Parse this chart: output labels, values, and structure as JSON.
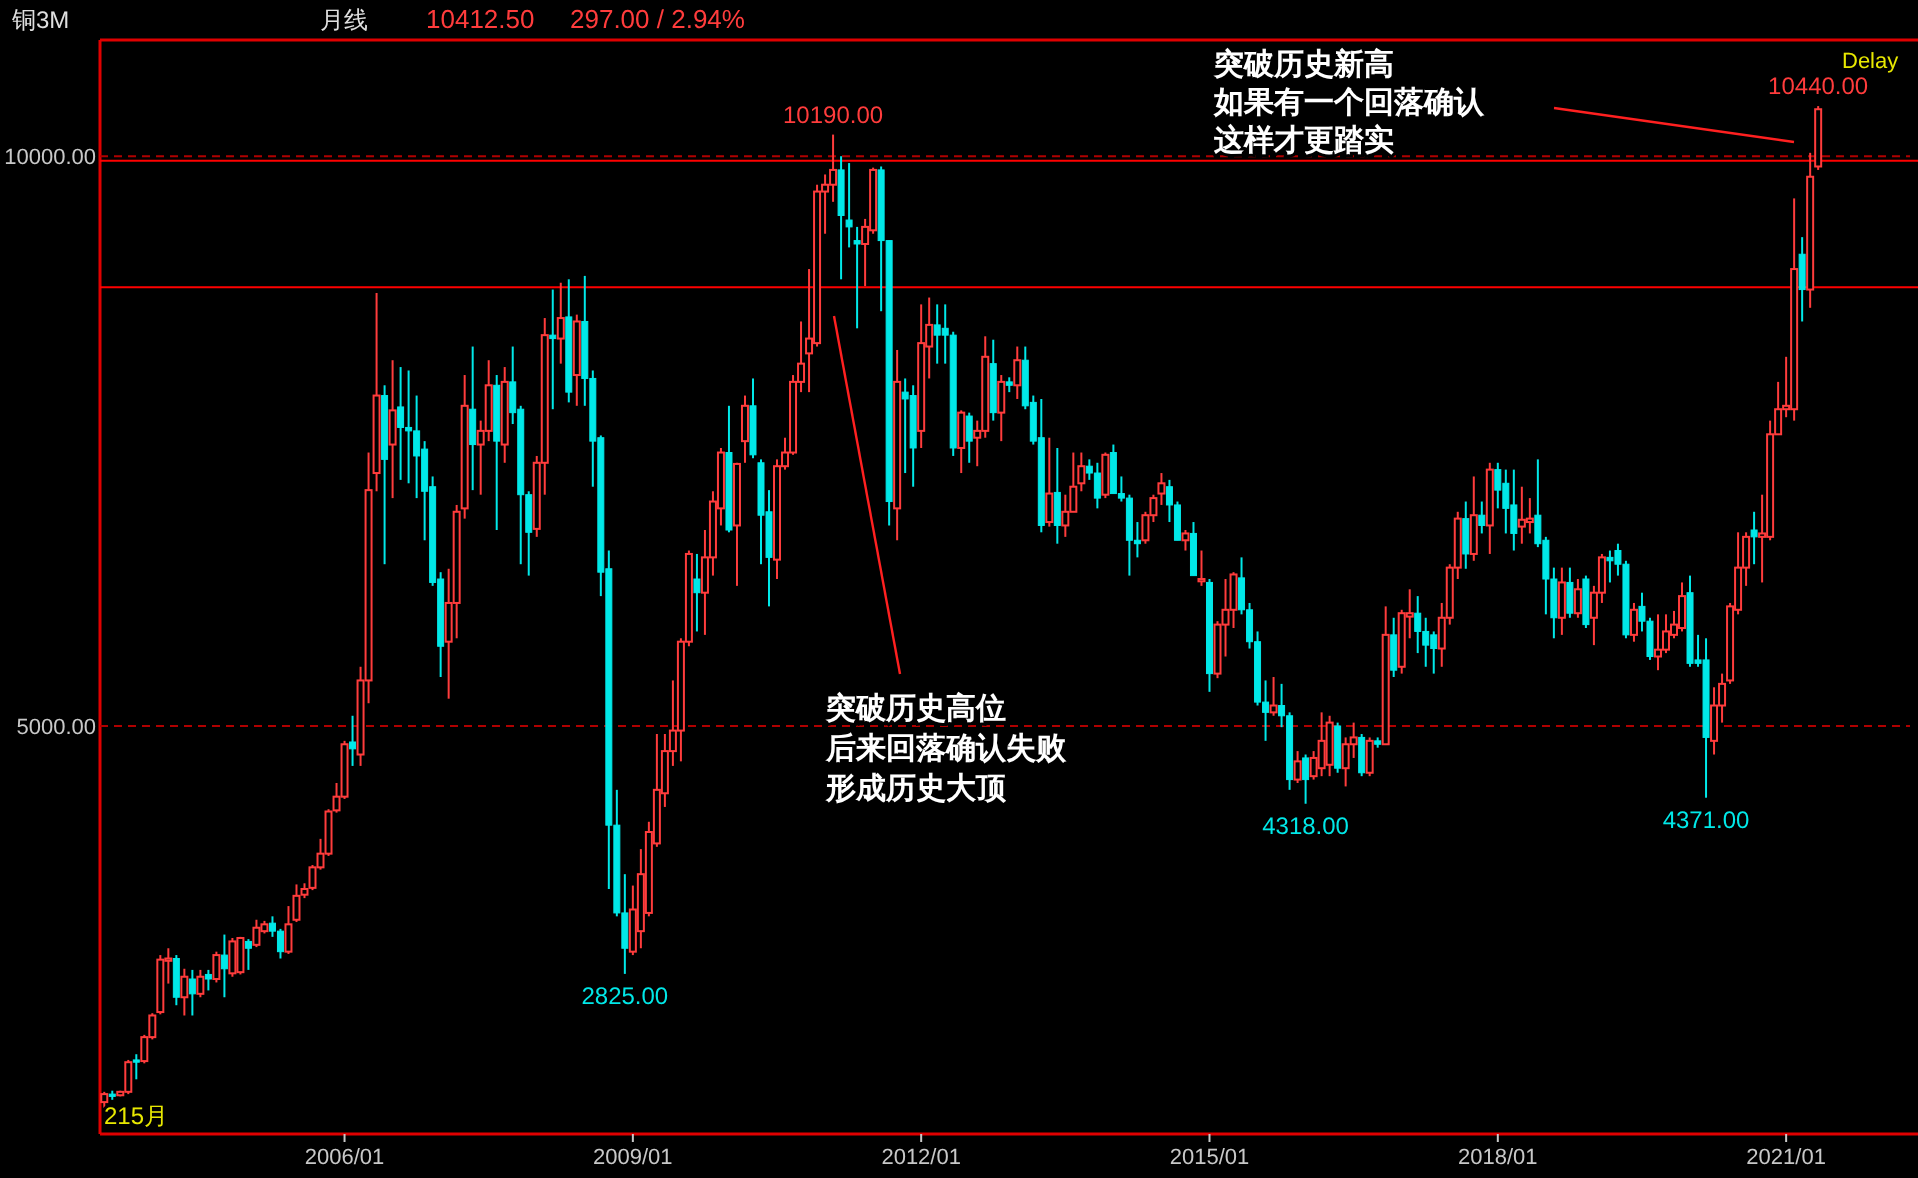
{
  "chart_data": {
    "type": "candlestick",
    "title": "铜3M",
    "subtitle": "月线",
    "annotations": [
      "10412.50",
      "297.00 / 2.94%",
      "Delay",
      "215月",
      "突破历史高位",
      "后来回落确认失败",
      "形成历史大顶",
      "突破历史新高",
      "如果有一个回落确认",
      "这样才更踏实",
      {
        "text": "10190.00",
        "x": "2011-02",
        "y": 10190
      },
      {
        "text": "2825.00",
        "x": "2008-12",
        "y": 2825
      },
      {
        "text": "4318.00",
        "x": "2016-01",
        "y": 4318
      },
      {
        "text": "4371.00",
        "x": "2020-03",
        "y": 4371
      },
      {
        "text": "10440.00",
        "x": "2021-05",
        "y": 10440
      }
    ],
    "x": [
      "2003-07",
      "2003-08",
      "2003-09",
      "2003-10",
      "2003-11",
      "2003-12",
      "2004-01",
      "2004-02",
      "2004-03",
      "2004-04",
      "2004-05",
      "2004-06",
      "2004-07",
      "2004-08",
      "2004-09",
      "2004-10",
      "2004-11",
      "2004-12",
      "2005-01",
      "2005-02",
      "2005-03",
      "2005-04",
      "2005-05",
      "2005-06",
      "2005-07",
      "2005-08",
      "2005-09",
      "2005-10",
      "2005-11",
      "2005-12",
      "2006-01",
      "2006-02",
      "2006-03",
      "2006-04",
      "2006-05",
      "2006-06",
      "2006-07",
      "2006-08",
      "2006-09",
      "2006-10",
      "2006-11",
      "2006-12",
      "2007-01",
      "2007-02",
      "2007-03",
      "2007-04",
      "2007-05",
      "2007-06",
      "2007-07",
      "2007-08",
      "2007-09",
      "2007-10",
      "2007-11",
      "2007-12",
      "2008-01",
      "2008-02",
      "2008-03",
      "2008-04",
      "2008-05",
      "2008-06",
      "2008-07",
      "2008-08",
      "2008-09",
      "2008-10",
      "2008-11",
      "2008-12",
      "2009-01",
      "2009-02",
      "2009-03",
      "2009-04",
      "2009-05",
      "2009-06",
      "2009-07",
      "2009-08",
      "2009-09",
      "2009-10",
      "2009-11",
      "2009-12",
      "2010-01",
      "2010-02",
      "2010-03",
      "2010-04",
      "2010-05",
      "2010-06",
      "2010-07",
      "2010-08",
      "2010-09",
      "2010-10",
      "2010-11",
      "2010-12",
      "2011-01",
      "2011-02",
      "2011-03",
      "2011-04",
      "2011-05",
      "2011-06",
      "2011-07",
      "2011-08",
      "2011-09",
      "2011-10",
      "2011-11",
      "2011-12",
      "2012-01",
      "2012-02",
      "2012-03",
      "2012-04",
      "2012-05",
      "2012-06",
      "2012-07",
      "2012-08",
      "2012-09",
      "2012-10",
      "2012-11",
      "2012-12",
      "2013-01",
      "2013-02",
      "2013-03",
      "2013-04",
      "2013-05",
      "2013-06",
      "2013-07",
      "2013-08",
      "2013-09",
      "2013-10",
      "2013-11",
      "2013-12",
      "2014-01",
      "2014-02",
      "2014-03",
      "2014-04",
      "2014-05",
      "2014-06",
      "2014-07",
      "2014-08",
      "2014-09",
      "2014-10",
      "2014-11",
      "2014-12",
      "2015-01",
      "2015-02",
      "2015-03",
      "2015-04",
      "2015-05",
      "2015-06",
      "2015-07",
      "2015-08",
      "2015-09",
      "2015-10",
      "2015-11",
      "2015-12",
      "2016-01",
      "2016-02",
      "2016-03",
      "2016-04",
      "2016-05",
      "2016-06",
      "2016-07",
      "2016-08",
      "2016-09",
      "2016-10",
      "2016-11",
      "2016-12",
      "2017-01",
      "2017-02",
      "2017-03",
      "2017-04",
      "2017-05",
      "2017-06",
      "2017-07",
      "2017-08",
      "2017-09",
      "2017-10",
      "2017-11",
      "2017-12",
      "2018-01",
      "2018-02",
      "2018-03",
      "2018-04",
      "2018-05",
      "2018-06",
      "2018-07",
      "2018-08",
      "2018-09",
      "2018-10",
      "2018-11",
      "2018-12",
      "2019-01",
      "2019-02",
      "2019-03",
      "2019-04",
      "2019-05",
      "2019-06",
      "2019-07",
      "2019-08",
      "2019-09",
      "2019-10",
      "2019-11",
      "2019-12",
      "2020-01",
      "2020-02",
      "2020-03",
      "2020-04",
      "2020-05",
      "2020-06",
      "2020-07",
      "2020-08",
      "2020-09",
      "2020-10",
      "2020-11",
      "2020-12",
      "2021-01",
      "2021-02",
      "2021-03",
      "2021-04",
      "2021-05"
    ],
    "ohlc": [
      [
        1700,
        1790,
        1650,
        1770
      ],
      [
        1770,
        1800,
        1720,
        1750
      ],
      [
        1760,
        1800,
        1750,
        1790
      ],
      [
        1790,
        2070,
        1770,
        2050
      ],
      [
        2070,
        2120,
        1900,
        2050
      ],
      [
        2060,
        2290,
        2040,
        2270
      ],
      [
        2270,
        2480,
        2250,
        2460
      ],
      [
        2490,
        2990,
        2470,
        2950
      ],
      [
        2940,
        3050,
        2740,
        2960
      ],
      [
        2960,
        2990,
        2550,
        2620
      ],
      [
        2620,
        2870,
        2460,
        2800
      ],
      [
        2780,
        2860,
        2460,
        2650
      ],
      [
        2650,
        2860,
        2620,
        2800
      ],
      [
        2820,
        2860,
        2680,
        2780
      ],
      [
        2780,
        3020,
        2750,
        2990
      ],
      [
        2990,
        3170,
        2620,
        2870
      ],
      [
        2830,
        3140,
        2800,
        3110
      ],
      [
        2840,
        3150,
        2820,
        3140
      ],
      [
        3110,
        3130,
        2860,
        3050
      ],
      [
        3080,
        3300,
        3060,
        3230
      ],
      [
        3200,
        3290,
        3180,
        3260
      ],
      [
        3270,
        3330,
        3150,
        3200
      ],
      [
        3200,
        3220,
        2960,
        3020
      ],
      [
        3020,
        3420,
        3000,
        3260
      ],
      [
        3300,
        3610,
        3280,
        3510
      ],
      [
        3520,
        3620,
        3490,
        3570
      ],
      [
        3580,
        3780,
        3560,
        3760
      ],
      [
        3760,
        4010,
        3740,
        3880
      ],
      [
        3880,
        4270,
        3860,
        4250
      ],
      [
        4260,
        4500,
        4240,
        4380
      ],
      [
        4380,
        4870,
        4360,
        4840
      ],
      [
        4860,
        5090,
        4650,
        4800
      ],
      [
        4750,
        5520,
        4650,
        5400
      ],
      [
        5400,
        7400,
        5200,
        7070
      ],
      [
        7220,
        8800,
        7060,
        7900
      ],
      [
        7900,
        7990,
        6420,
        7340
      ],
      [
        7470,
        8210,
        7000,
        7770
      ],
      [
        7800,
        8150,
        7160,
        7620
      ],
      [
        7620,
        8120,
        7130,
        7590
      ],
      [
        7590,
        7900,
        7000,
        7370
      ],
      [
        7430,
        7500,
        6630,
        7060
      ],
      [
        7100,
        7190,
        6230,
        6260
      ],
      [
        6290,
        6350,
        5430,
        5700
      ],
      [
        5740,
        6380,
        5240,
        6080
      ],
      [
        6080,
        6940,
        5770,
        6880
      ],
      [
        6910,
        8080,
        6820,
        7810
      ],
      [
        7780,
        8330,
        7070,
        7470
      ],
      [
        7470,
        7680,
        7030,
        7590
      ],
      [
        7590,
        8210,
        7500,
        7990
      ],
      [
        7990,
        8080,
        6720,
        7500
      ],
      [
        7470,
        8150,
        7310,
        8020
      ],
      [
        8020,
        8330,
        7650,
        7750
      ],
      [
        7780,
        7810,
        6420,
        7030
      ],
      [
        7030,
        7060,
        6320,
        6700
      ],
      [
        6730,
        7370,
        6660,
        7310
      ],
      [
        7310,
        8580,
        7030,
        8430
      ],
      [
        8430,
        8830,
        7780,
        8400
      ],
      [
        8400,
        8890,
        8180,
        8580
      ],
      [
        8590,
        8920,
        7840,
        7930
      ],
      [
        8080,
        8610,
        7810,
        8550
      ],
      [
        8550,
        8950,
        7810,
        8050
      ],
      [
        8050,
        8120,
        7100,
        7500
      ],
      [
        7530,
        7550,
        6140,
        6350
      ],
      [
        6380,
        6540,
        3570,
        4130
      ],
      [
        4130,
        4440,
        3330,
        3360
      ],
      [
        3360,
        3700,
        2825,
        3050
      ],
      [
        3020,
        3600,
        2990,
        3390
      ],
      [
        3200,
        3920,
        3050,
        3700
      ],
      [
        3360,
        4160,
        3330,
        4070
      ],
      [
        3970,
        4930,
        3940,
        4440
      ],
      [
        4410,
        4930,
        4290,
        4780
      ],
      [
        4780,
        5400,
        4650,
        4960
      ],
      [
        4960,
        5770,
        4690,
        5740
      ],
      [
        5740,
        6540,
        5700,
        6510
      ],
      [
        6290,
        6510,
        5830,
        6170
      ],
      [
        6170,
        6720,
        5800,
        6480
      ],
      [
        6480,
        7060,
        6320,
        6970
      ],
      [
        6910,
        7440,
        6760,
        7400
      ],
      [
        7400,
        7810,
        6700,
        6720
      ],
      [
        6760,
        7310,
        6230,
        7300
      ],
      [
        7500,
        7900,
        7310,
        7810
      ],
      [
        7810,
        8050,
        7350,
        7380
      ],
      [
        7310,
        7340,
        6420,
        6850
      ],
      [
        6880,
        7070,
        6050,
        6480
      ],
      [
        6460,
        7340,
        6290,
        7280
      ],
      [
        7280,
        7530,
        7250,
        7400
      ],
      [
        7400,
        8080,
        7380,
        8020
      ],
      [
        8020,
        8550,
        7930,
        8180
      ],
      [
        8270,
        9010,
        7930,
        8400
      ],
      [
        8360,
        9750,
        8330,
        9690
      ],
      [
        9690,
        9840,
        9320,
        9750
      ],
      [
        9750,
        10190,
        9600,
        9880
      ],
      [
        9880,
        10000,
        8920,
        9480
      ],
      [
        9440,
        9940,
        9200,
        9380
      ],
      [
        9260,
        9380,
        8490,
        9230
      ],
      [
        9230,
        9450,
        8860,
        9380
      ],
      [
        9350,
        9900,
        9320,
        9880
      ],
      [
        9880,
        9910,
        8640,
        9260
      ],
      [
        9260,
        9260,
        6760,
        6970
      ],
      [
        6910,
        8300,
        6630,
        8020
      ],
      [
        7930,
        8050,
        7220,
        7870
      ],
      [
        7900,
        7990,
        7100,
        7440
      ],
      [
        7590,
        8700,
        7440,
        8360
      ],
      [
        8330,
        8760,
        8050,
        8520
      ],
      [
        8520,
        8700,
        8180,
        8430
      ],
      [
        8490,
        8700,
        8180,
        8430
      ],
      [
        8430,
        8460,
        7370,
        7440
      ],
      [
        7440,
        7770,
        7220,
        7750
      ],
      [
        7720,
        7750,
        7310,
        7500
      ],
      [
        7530,
        7680,
        7280,
        7590
      ],
      [
        7590,
        8420,
        7530,
        8240
      ],
      [
        8180,
        8390,
        7680,
        7750
      ],
      [
        7750,
        8080,
        7500,
        8020
      ],
      [
        8020,
        8060,
        7930,
        7990
      ],
      [
        7990,
        8330,
        7870,
        8210
      ],
      [
        8210,
        8330,
        7780,
        7810
      ],
      [
        7840,
        7900,
        7470,
        7500
      ],
      [
        7530,
        7870,
        6700,
        6760
      ],
      [
        6790,
        7530,
        6750,
        7040
      ],
      [
        7050,
        7440,
        6600,
        6760
      ],
      [
        6760,
        7030,
        6660,
        6880
      ],
      [
        6880,
        7400,
        6880,
        7100
      ],
      [
        7130,
        7400,
        7060,
        7280
      ],
      [
        7280,
        7340,
        7160,
        7220
      ],
      [
        7220,
        7310,
        6910,
        7000
      ],
      [
        7030,
        7400,
        7000,
        7380
      ],
      [
        7400,
        7470,
        7040,
        7040
      ],
      [
        7040,
        7190,
        6970,
        7000
      ],
      [
        7000,
        7030,
        6320,
        6630
      ],
      [
        6630,
        6790,
        6480,
        6600
      ],
      [
        6630,
        6880,
        6600,
        6850
      ],
      [
        6850,
        7030,
        6790,
        7000
      ],
      [
        7040,
        7220,
        6940,
        7130
      ],
      [
        7100,
        7160,
        6790,
        6940
      ],
      [
        6940,
        6970,
        6630,
        6630
      ],
      [
        6630,
        6720,
        6540,
        6690
      ],
      [
        6690,
        6790,
        6320,
        6320
      ],
      [
        6270,
        6540,
        6230,
        6290
      ],
      [
        6260,
        6290,
        5300,
        5460
      ],
      [
        5460,
        5920,
        5420,
        5890
      ],
      [
        5890,
        6290,
        5610,
        6020
      ],
      [
        6020,
        6350,
        5860,
        6330
      ],
      [
        6300,
        6480,
        5980,
        6020
      ],
      [
        6020,
        6080,
        5680,
        5740
      ],
      [
        5740,
        5830,
        5180,
        5210
      ],
      [
        5210,
        5400,
        4870,
        5120
      ],
      [
        5120,
        5430,
        5090,
        5180
      ],
      [
        5180,
        5370,
        4990,
        5090
      ],
      [
        5090,
        5120,
        4440,
        4530
      ],
      [
        4530,
        4780,
        4500,
        4690
      ],
      [
        4720,
        4750,
        4318,
        4530
      ],
      [
        4560,
        4780,
        4530,
        4720
      ],
      [
        4630,
        5120,
        4560,
        4870
      ],
      [
        4660,
        5090,
        4560,
        5030
      ],
      [
        5000,
        5030,
        4590,
        4630
      ],
      [
        4630,
        4900,
        4470,
        4840
      ],
      [
        4840,
        5030,
        4720,
        4900
      ],
      [
        4900,
        4930,
        4560,
        4590
      ],
      [
        4590,
        4900,
        4560,
        4870
      ],
      [
        4870,
        4900,
        4810,
        4840
      ],
      [
        4840,
        6050,
        4840,
        5800
      ],
      [
        5800,
        5950,
        5430,
        5490
      ],
      [
        5520,
        6020,
        5460,
        5990
      ],
      [
        5960,
        6200,
        5770,
        5990
      ],
      [
        5990,
        6140,
        5640,
        5830
      ],
      [
        5830,
        5950,
        5520,
        5710
      ],
      [
        5800,
        5830,
        5460,
        5680
      ],
      [
        5680,
        6080,
        5520,
        5950
      ],
      [
        5950,
        6420,
        5890,
        6390
      ],
      [
        6390,
        6880,
        6290,
        6820
      ],
      [
        6820,
        6970,
        6380,
        6510
      ],
      [
        6510,
        7190,
        6450,
        6850
      ],
      [
        6850,
        6970,
        6690,
        6760
      ],
      [
        6760,
        7310,
        6510,
        7250
      ],
      [
        7250,
        7310,
        6910,
        7070
      ],
      [
        7130,
        7250,
        6690,
        6910
      ],
      [
        6940,
        7250,
        6540,
        6690
      ],
      [
        6750,
        7100,
        6600,
        6810
      ],
      [
        6790,
        7000,
        6690,
        6820
      ],
      [
        6850,
        7340,
        6570,
        6600
      ],
      [
        6630,
        6660,
        5980,
        6290
      ],
      [
        6290,
        6390,
        5770,
        5950
      ],
      [
        5950,
        6390,
        5800,
        6260
      ],
      [
        6260,
        6390,
        5950,
        5990
      ],
      [
        5990,
        6290,
        5950,
        6200
      ],
      [
        6290,
        6320,
        5860,
        5890
      ],
      [
        5950,
        6230,
        5710,
        6170
      ],
      [
        6170,
        6510,
        6080,
        6480
      ],
      [
        6480,
        6540,
        6260,
        6450
      ],
      [
        6540,
        6600,
        6320,
        6420
      ],
      [
        6420,
        6450,
        5770,
        5800
      ],
      [
        5800,
        6080,
        5740,
        6020
      ],
      [
        6050,
        6170,
        5830,
        5920
      ],
      [
        5920,
        5950,
        5580,
        5610
      ],
      [
        5610,
        5980,
        5490,
        5670
      ],
      [
        5670,
        5980,
        5640,
        5830
      ],
      [
        5800,
        6010,
        5770,
        5890
      ],
      [
        5860,
        6260,
        5830,
        6140
      ],
      [
        6170,
        6320,
        5520,
        5550
      ],
      [
        5580,
        5800,
        5520,
        5550
      ],
      [
        5580,
        5770,
        4371,
        4900
      ],
      [
        4870,
        5340,
        4750,
        5180
      ],
      [
        5180,
        5460,
        5030,
        5370
      ],
      [
        5400,
        6080,
        5370,
        6050
      ],
      [
        6020,
        6700,
        5980,
        6390
      ],
      [
        6390,
        6700,
        6230,
        6660
      ],
      [
        6720,
        6880,
        6420,
        6660
      ],
      [
        6660,
        7030,
        6260,
        6690
      ],
      [
        6660,
        7680,
        6630,
        7560
      ],
      [
        7560,
        8020,
        7560,
        7780
      ],
      [
        7780,
        8240,
        7710,
        7810
      ],
      [
        7780,
        9630,
        7680,
        9010
      ],
      [
        9140,
        9290,
        8550,
        8830
      ],
      [
        8830,
        10030,
        8670,
        9820
      ],
      [
        9910,
        10440,
        9880,
        10412.5
      ]
    ],
    "xlim": [
      "2003-06-15",
      "2022-04-15"
    ],
    "xticks": [
      {
        "value": "2006-01",
        "label": "2006/01"
      },
      {
        "value": "2009-01",
        "label": "2009/01"
      },
      {
        "value": "2012-01",
        "label": "2012/01"
      },
      {
        "value": "2015-01",
        "label": "2015/01"
      },
      {
        "value": "2018-01",
        "label": "2018/01"
      },
      {
        "value": "2021-01",
        "label": "2021/01"
      }
    ],
    "ylim": [
      1420,
      11020
    ],
    "yticks": [
      {
        "value": 5000,
        "label": "5000.00"
      },
      {
        "value": 10000,
        "label": "10000.00"
      }
    ],
    "grid": "y",
    "ref_lines": [
      {
        "axis": "y",
        "value": 9960,
        "color": "#ff0000"
      },
      {
        "axis": "y",
        "value": 8850,
        "color": "#ff0000"
      }
    ]
  }
}
